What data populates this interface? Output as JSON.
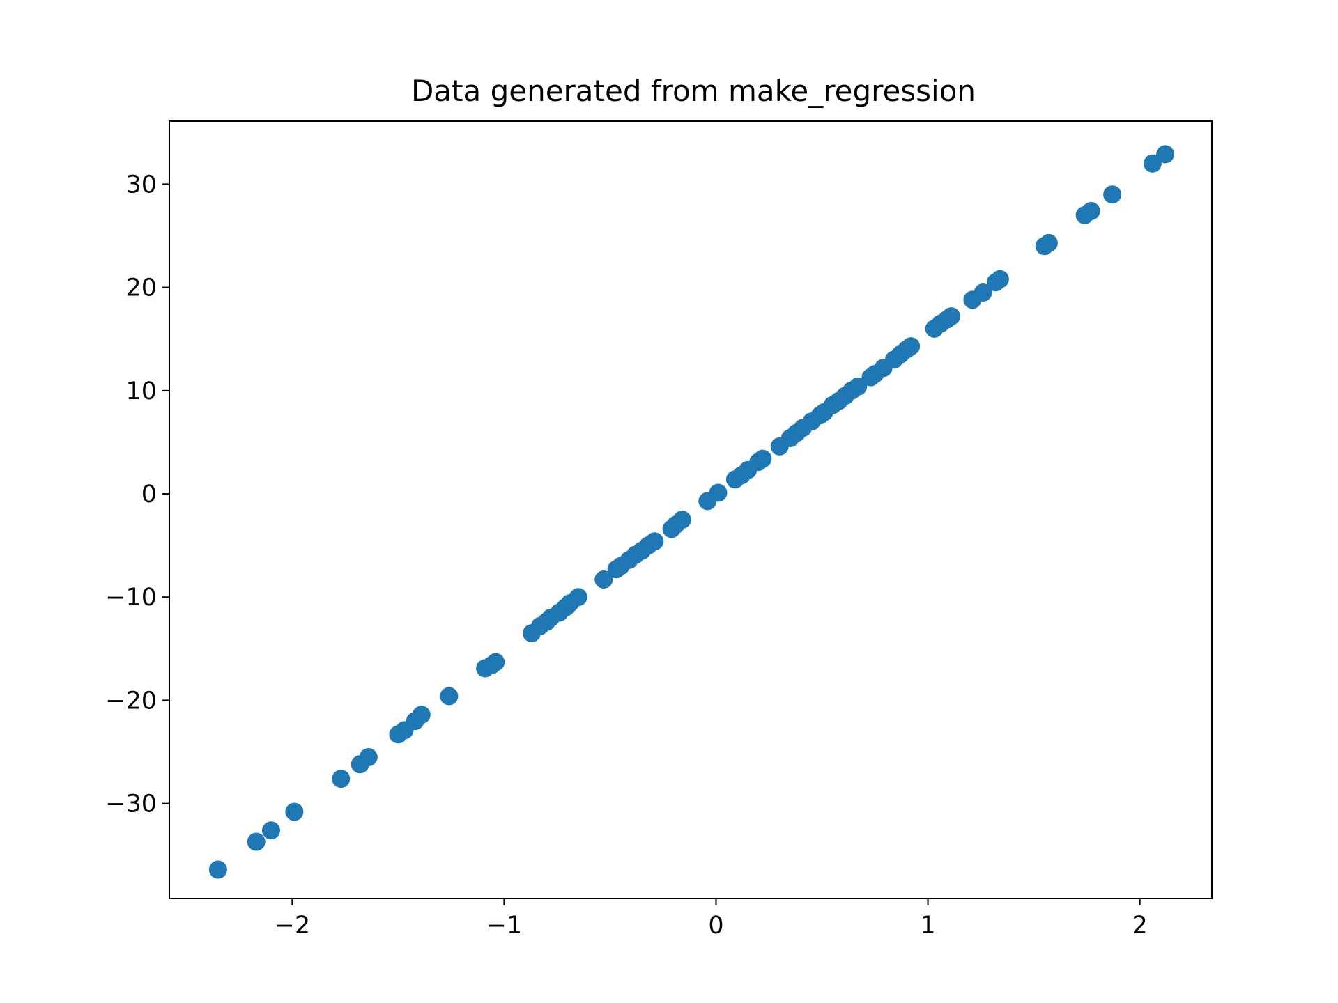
{
  "chart_data": {
    "type": "scatter",
    "title": "Data generated from make_regression",
    "xlabel": "",
    "ylabel": "",
    "xlim": [
      -2.58,
      2.34
    ],
    "ylim": [
      -39.2,
      36.1
    ],
    "xticks": [
      -2,
      -1,
      0,
      1,
      2
    ],
    "yticks": [
      -30,
      -20,
      -10,
      0,
      10,
      20,
      30
    ],
    "xtick_labels": [
      "−2",
      "−1",
      "0",
      "1",
      "2"
    ],
    "ytick_labels": [
      "−30",
      "−20",
      "−10",
      "0",
      "10",
      "20",
      "30"
    ],
    "grid": false,
    "marker_color": "#1f77b4",
    "points": [
      [
        -2.35,
        -36.4
      ],
      [
        -2.17,
        -33.7
      ],
      [
        -2.1,
        -32.6
      ],
      [
        -1.99,
        -30.8
      ],
      [
        -1.77,
        -27.6
      ],
      [
        -1.68,
        -26.2
      ],
      [
        -1.64,
        -25.5
      ],
      [
        -1.5,
        -23.3
      ],
      [
        -1.47,
        -22.9
      ],
      [
        -1.42,
        -22.0
      ],
      [
        -1.39,
        -21.4
      ],
      [
        -1.26,
        -19.6
      ],
      [
        -1.09,
        -16.9
      ],
      [
        -1.06,
        -16.6
      ],
      [
        -1.04,
        -16.3
      ],
      [
        -0.87,
        -13.5
      ],
      [
        -0.83,
        -12.8
      ],
      [
        -0.8,
        -12.4
      ],
      [
        -0.78,
        -12.0
      ],
      [
        -0.74,
        -11.5
      ],
      [
        -0.71,
        -11.0
      ],
      [
        -0.69,
        -10.6
      ],
      [
        -0.65,
        -10.0
      ],
      [
        -0.53,
        -8.3
      ],
      [
        -0.47,
        -7.3
      ],
      [
        -0.45,
        -7.0
      ],
      [
        -0.41,
        -6.4
      ],
      [
        -0.38,
        -5.9
      ],
      [
        -0.35,
        -5.5
      ],
      [
        -0.32,
        -5.0
      ],
      [
        -0.29,
        -4.6
      ],
      [
        -0.21,
        -3.4
      ],
      [
        -0.19,
        -3.0
      ],
      [
        -0.16,
        -2.5
      ],
      [
        -0.04,
        -0.7
      ],
      [
        0.01,
        0.1
      ],
      [
        0.09,
        1.4
      ],
      [
        0.12,
        1.8
      ],
      [
        0.15,
        2.3
      ],
      [
        0.2,
        3.1
      ],
      [
        0.22,
        3.4
      ],
      [
        0.3,
        4.6
      ],
      [
        0.35,
        5.4
      ],
      [
        0.38,
        5.9
      ],
      [
        0.41,
        6.4
      ],
      [
        0.45,
        7.0
      ],
      [
        0.49,
        7.6
      ],
      [
        0.51,
        7.9
      ],
      [
        0.55,
        8.6
      ],
      [
        0.58,
        9.0
      ],
      [
        0.61,
        9.5
      ],
      [
        0.64,
        10.0
      ],
      [
        0.67,
        10.4
      ],
      [
        0.73,
        11.3
      ],
      [
        0.75,
        11.6
      ],
      [
        0.79,
        12.2
      ],
      [
        0.84,
        13.0
      ],
      [
        0.87,
        13.5
      ],
      [
        0.9,
        14.0
      ],
      [
        0.92,
        14.3
      ],
      [
        1.03,
        16.0
      ],
      [
        1.06,
        16.5
      ],
      [
        1.09,
        16.9
      ],
      [
        1.11,
        17.2
      ],
      [
        1.21,
        18.8
      ],
      [
        1.26,
        19.5
      ],
      [
        1.32,
        20.5
      ],
      [
        1.34,
        20.8
      ],
      [
        1.55,
        24.0
      ],
      [
        1.57,
        24.3
      ],
      [
        1.74,
        27.0
      ],
      [
        1.77,
        27.4
      ],
      [
        1.87,
        29.0
      ],
      [
        2.06,
        32.0
      ],
      [
        2.12,
        32.9
      ]
    ]
  }
}
